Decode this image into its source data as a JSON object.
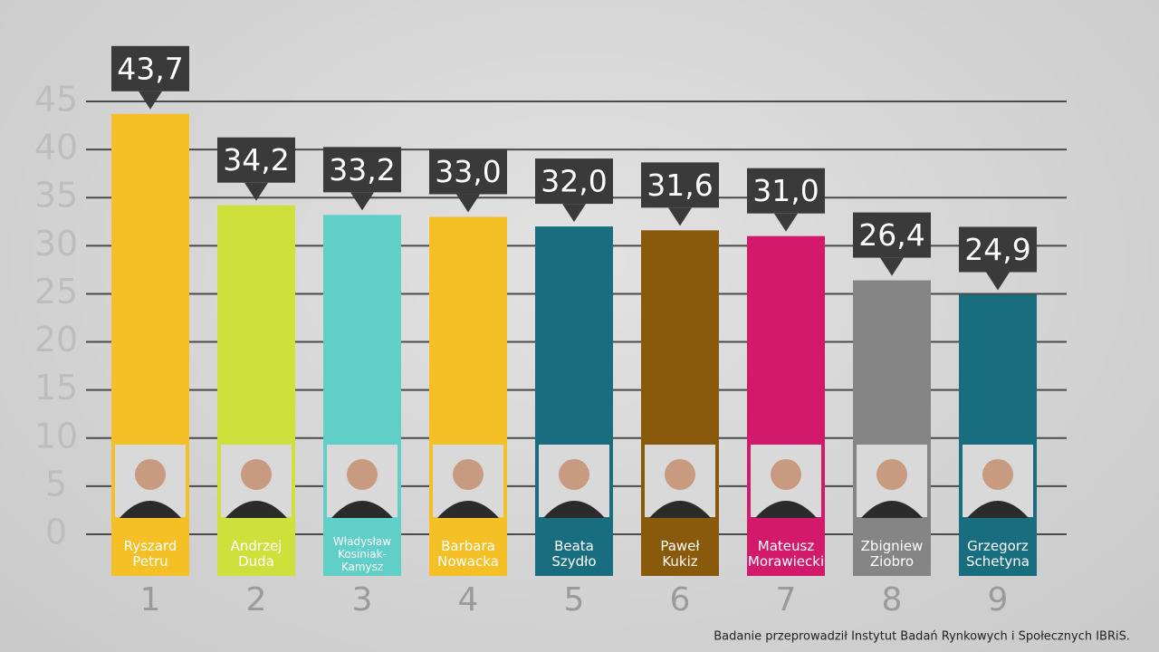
{
  "chart_data": {
    "type": "bar",
    "categories": [
      "Ryszard Petru",
      "Andrzej Duda",
      "Władysław Kosiniak-Kamysz",
      "Barbara Nowacka",
      "Beata Szydło",
      "Paweł Kukiz",
      "Mateusz Morawiecki",
      "Zbigniew Ziobro",
      "Grzegorz Schetyna"
    ],
    "values": [
      43.7,
      34.2,
      33.2,
      33.0,
      32.0,
      31.6,
      31.0,
      26.4,
      24.9
    ],
    "value_labels": [
      "43,7",
      "34,2",
      "33,2",
      "33,0",
      "32,0",
      "31,6",
      "31,0",
      "26,4",
      "24,9"
    ],
    "colors": [
      "#f4c025",
      "#cde03b",
      "#5fcfc7",
      "#f4c025",
      "#186e7e",
      "#8a5a0c",
      "#d2196b",
      "#858585",
      "#186e7e"
    ],
    "ranks": [
      1,
      2,
      3,
      4,
      5,
      6,
      7,
      8,
      9
    ],
    "ylim": [
      0,
      45
    ],
    "yticks": [
      0,
      5,
      10,
      15,
      20,
      25,
      30,
      35,
      40,
      45
    ],
    "grid": true,
    "source": "Badanie przeprowadził Instytut Badań Rynkowych i Społecznych IBRiS."
  }
}
